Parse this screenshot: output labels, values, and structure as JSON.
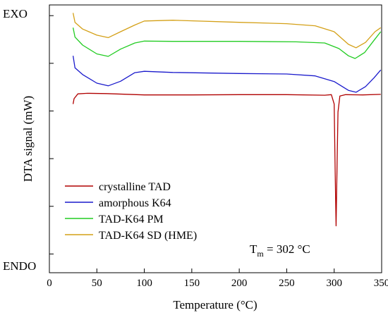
{
  "chart_data": {
    "type": "line",
    "xlabel": "Temperature (°C)",
    "ylabel": "DTA signal (mW)",
    "xlim": [
      0,
      350
    ],
    "xticks": [
      "0",
      "50",
      "100",
      "150",
      "200",
      "250",
      "300",
      "350"
    ],
    "grid": false,
    "legend_position": "bottom-left",
    "y_labels": {
      "top": "EXO",
      "bottom": "ENDO"
    },
    "annotation": {
      "main": "T",
      "sub": "m",
      "rest": " = 302 °C"
    },
    "series": [
      {
        "name": "crystalline TAD",
        "color": "#b00000",
        "points": [
          [
            25,
            0.37
          ],
          [
            26,
            0.35
          ],
          [
            30,
            0.332
          ],
          [
            40,
            0.33
          ],
          [
            60,
            0.331
          ],
          [
            100,
            0.336
          ],
          [
            150,
            0.336
          ],
          [
            200,
            0.335
          ],
          [
            250,
            0.335
          ],
          [
            290,
            0.337
          ],
          [
            297,
            0.335
          ],
          [
            300,
            0.37
          ],
          [
            301,
            0.62
          ],
          [
            302,
            0.825
          ],
          [
            303,
            0.6
          ],
          [
            304,
            0.4
          ],
          [
            306,
            0.34
          ],
          [
            312,
            0.335
          ],
          [
            330,
            0.336
          ],
          [
            349,
            0.334
          ]
        ]
      },
      {
        "name": "amorphous K64",
        "color": "#1a1acc",
        "points": [
          [
            25,
            0.19
          ],
          [
            27,
            0.235
          ],
          [
            35,
            0.26
          ],
          [
            50,
            0.292
          ],
          [
            62,
            0.302
          ],
          [
            75,
            0.285
          ],
          [
            90,
            0.253
          ],
          [
            100,
            0.248
          ],
          [
            130,
            0.252
          ],
          [
            200,
            0.256
          ],
          [
            250,
            0.258
          ],
          [
            280,
            0.265
          ],
          [
            300,
            0.286
          ],
          [
            315,
            0.319
          ],
          [
            323,
            0.326
          ],
          [
            333,
            0.305
          ],
          [
            342,
            0.272
          ],
          [
            349,
            0.243
          ]
        ]
      },
      {
        "name": "TAD-K64 PM",
        "color": "#22cc22",
        "points": [
          [
            25,
            0.085
          ],
          [
            27,
            0.12
          ],
          [
            35,
            0.15
          ],
          [
            50,
            0.183
          ],
          [
            62,
            0.192
          ],
          [
            75,
            0.165
          ],
          [
            90,
            0.142
          ],
          [
            100,
            0.135
          ],
          [
            130,
            0.136
          ],
          [
            200,
            0.136
          ],
          [
            260,
            0.138
          ],
          [
            290,
            0.142
          ],
          [
            305,
            0.163
          ],
          [
            315,
            0.19
          ],
          [
            322,
            0.2
          ],
          [
            332,
            0.178
          ],
          [
            342,
            0.132
          ],
          [
            349,
            0.1
          ]
        ]
      },
      {
        "name": "TAD-K64 SD (HME)",
        "color": "#d4a017",
        "points": [
          [
            25,
            0.03
          ],
          [
            27,
            0.065
          ],
          [
            35,
            0.09
          ],
          [
            50,
            0.113
          ],
          [
            62,
            0.122
          ],
          [
            75,
            0.1
          ],
          [
            90,
            0.075
          ],
          [
            100,
            0.06
          ],
          [
            130,
            0.057
          ],
          [
            200,
            0.065
          ],
          [
            250,
            0.07
          ],
          [
            280,
            0.078
          ],
          [
            300,
            0.1
          ],
          [
            315,
            0.147
          ],
          [
            323,
            0.16
          ],
          [
            333,
            0.14
          ],
          [
            343,
            0.1
          ],
          [
            349,
            0.085
          ]
        ]
      }
    ]
  }
}
